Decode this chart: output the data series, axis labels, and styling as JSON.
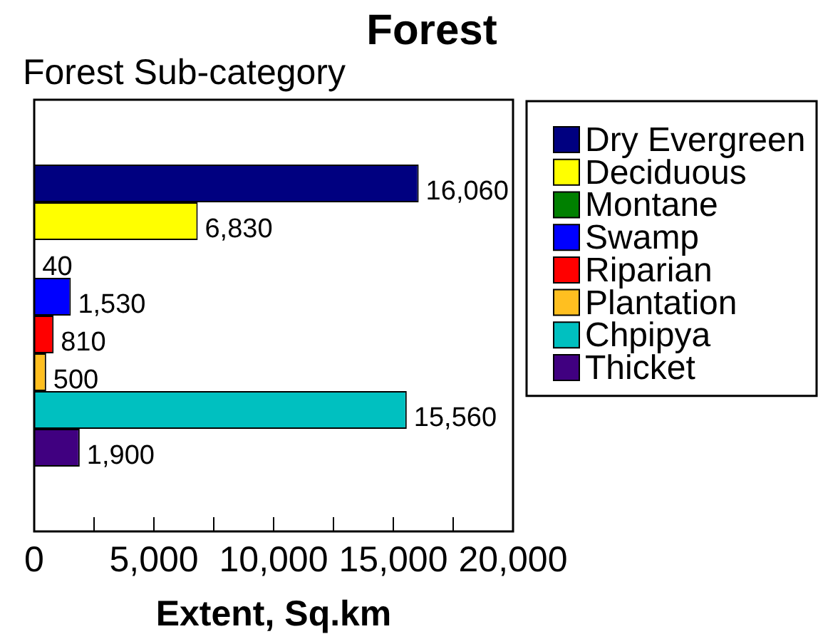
{
  "chart_data": {
    "type": "bar",
    "orientation": "horizontal",
    "title": "Forest",
    "ylabel": "Forest Sub-category",
    "xlabel": "Extent, Sq.km",
    "categories": [
      null
    ],
    "series": [
      {
        "name": "Dry Evergreen",
        "color": "#000080",
        "values": [
          16060
        ],
        "value_labels": [
          "16,060"
        ]
      },
      {
        "name": "Deciduous",
        "color": "#ffff00",
        "values": [
          6830
        ],
        "value_labels": [
          "6,830"
        ]
      },
      {
        "name": "Montane",
        "color": "#008000",
        "values": [
          40
        ],
        "value_labels": [
          "40"
        ]
      },
      {
        "name": "Swamp",
        "color": "#0000ff",
        "values": [
          1530
        ],
        "value_labels": [
          "1,530"
        ]
      },
      {
        "name": "Riparian",
        "color": "#ff0000",
        "values": [
          810
        ],
        "value_labels": [
          "810"
        ]
      },
      {
        "name": "Plantation",
        "color": "#ffbf20",
        "values": [
          500
        ],
        "value_labels": [
          "500"
        ]
      },
      {
        "name": "Chpipya",
        "color": "#00c0c0",
        "values": [
          15560
        ],
        "value_labels": [
          "15,560"
        ]
      },
      {
        "name": "Thicket",
        "color": "#400080",
        "values": [
          1900
        ],
        "value_labels": [
          "1,900"
        ]
      }
    ],
    "xlim": [
      0,
      20000
    ],
    "xticks": [
      0,
      {
        "value": 2500,
        "label": null
      },
      {
        "value": 5000,
        "label": "5,000"
      },
      {
        "value": 7500,
        "label": null
      },
      {
        "value": 10000,
        "label": "10,000"
      },
      {
        "value": 12500,
        "label": null
      },
      {
        "value": 15000,
        "label": "15,000"
      },
      {
        "value": 17500,
        "label": null
      },
      {
        "value": 20000,
        "label": "20,000"
      }
    ],
    "legend": "right"
  }
}
